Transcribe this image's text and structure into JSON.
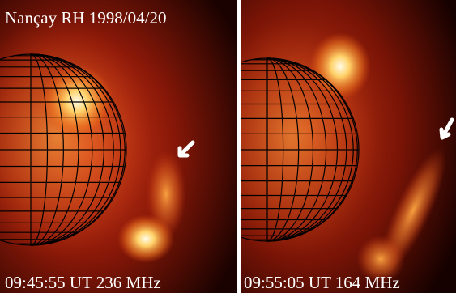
{
  "title": "Nançay RH 1998/04/20",
  "panels": [
    {
      "caption": "09:45:55 UT 236 MHz"
    },
    {
      "caption": "09:55:05 UT 164 MHz"
    }
  ]
}
